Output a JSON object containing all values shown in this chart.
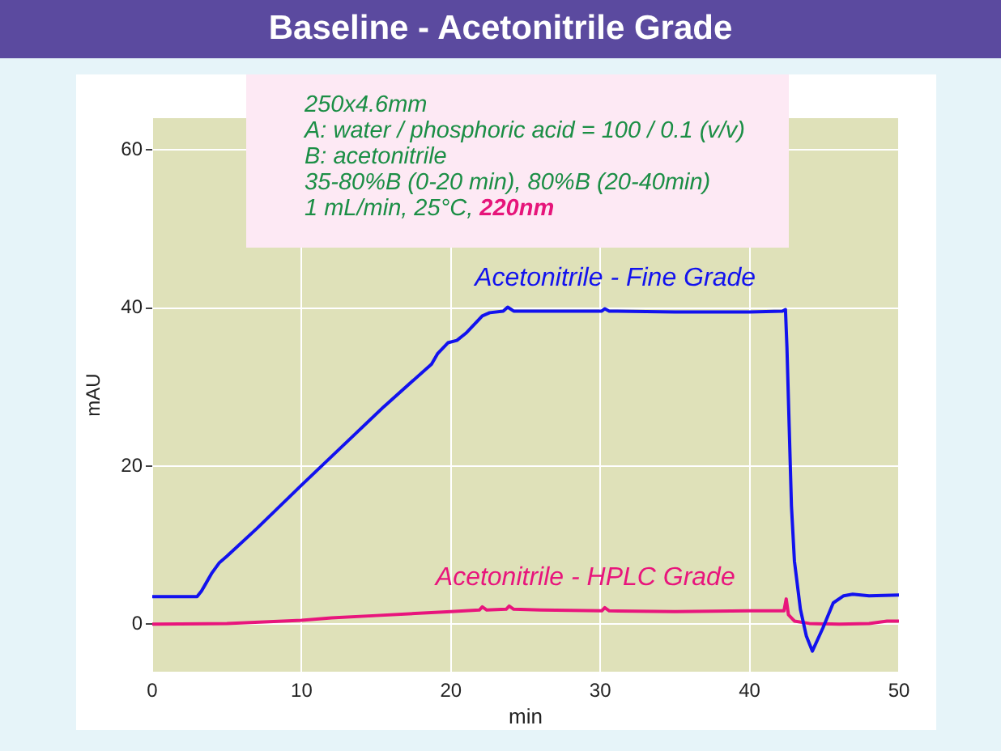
{
  "chart_data": {
    "type": "line",
    "title": "Baseline - Acetonitrile Grade",
    "xlabel": "min",
    "ylabel": "mAU",
    "annotations": [
      "250x4.6mm",
      "A: water / phosphoric acid = 100 / 0.1 (v/v)",
      "B: acetonitrile",
      "35-80%B (0-20 min), 80%B (20-40min)",
      "1 mL/min, 25°C,",
      "220nm"
    ],
    "series": [
      {
        "name": "Acetonitrile - Fine Grade",
        "color": "#1212ee",
        "x": [
          0,
          3,
          3.3,
          4,
          4.5,
          5,
          7,
          10,
          13,
          15.5,
          18.7,
          19.1,
          19.8,
          20.4,
          21,
          22.1,
          22.6,
          23.5,
          23.8,
          24.2,
          27,
          30.1,
          30.3,
          30.6,
          35,
          40,
          42.2,
          42.4,
          42.5,
          42.65,
          42.8,
          43,
          43.4,
          43.8,
          44.2,
          44.9,
          45.6,
          46.3,
          46.9,
          48,
          50
        ],
        "values": [
          3.5,
          3.5,
          4.2,
          6.5,
          7.8,
          8.6,
          12.1,
          17.6,
          23,
          27.5,
          32.9,
          34.2,
          35.6,
          35.9,
          36.8,
          39,
          39.4,
          39.6,
          40.1,
          39.6,
          39.6,
          39.6,
          39.9,
          39.6,
          39.5,
          39.5,
          39.6,
          39.8,
          35,
          25,
          15,
          8,
          1.9,
          -1.5,
          -3.4,
          -0.5,
          2.7,
          3.6,
          3.8,
          3.6,
          3.7
        ]
      },
      {
        "name": "Acetonitrile - HPLC Grade",
        "color": "#e8157c",
        "x": [
          0,
          5,
          10,
          12,
          15,
          20,
          21.9,
          22.1,
          22.4,
          23.7,
          23.9,
          24.2,
          26,
          30.1,
          30.3,
          30.6,
          35,
          40,
          42.3,
          42.45,
          42.6,
          43,
          44,
          46,
          48,
          49.2,
          50
        ],
        "values": [
          0,
          0.1,
          0.5,
          0.8,
          1.1,
          1.6,
          1.8,
          2.2,
          1.8,
          1.9,
          2.3,
          1.9,
          1.8,
          1.7,
          2.1,
          1.7,
          1.6,
          1.7,
          1.7,
          3.2,
          1.2,
          0.4,
          0.1,
          0,
          0.1,
          0.4,
          0.4
        ]
      }
    ],
    "xlim": [
      0,
      50
    ],
    "xticks": [
      0,
      10,
      20,
      30,
      40,
      50
    ],
    "ylim": [
      -6,
      64
    ],
    "yticks": [
      0,
      20,
      40,
      60
    ],
    "grid": true
  }
}
